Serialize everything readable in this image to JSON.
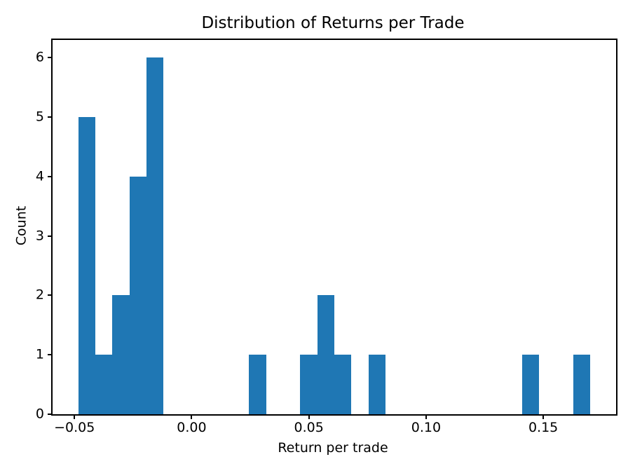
{
  "figure": {
    "background_color": "#ffffff",
    "text_color": "#000000"
  },
  "chart_data": {
    "type": "bar",
    "subtype": "histogram",
    "title": "Distribution of Returns per Trade",
    "xlabel": "Return per trade",
    "ylabel": "Count",
    "bar_color": "#1f77b4",
    "spine_color": "#000000",
    "grid": false,
    "legend_position": "none",
    "xlim": [
      -0.059327,
      0.181057
    ],
    "ylim": [
      0,
      6.3
    ],
    "bins": {
      "start": -0.0484,
      "width": 0.0072843,
      "count": 30
    },
    "bin_counts": [
      5,
      1,
      2,
      4,
      6,
      0,
      0,
      0,
      0,
      0,
      1,
      0,
      0,
      1,
      2,
      1,
      0,
      1,
      0,
      0,
      0,
      0,
      0,
      0,
      0,
      0,
      1,
      0,
      0,
      1
    ],
    "xticks": [
      {
        "value": -0.05,
        "label": "−0.05"
      },
      {
        "value": 0.0,
        "label": "0.00"
      },
      {
        "value": 0.05,
        "label": "0.05"
      },
      {
        "value": 0.1,
        "label": "0.10"
      },
      {
        "value": 0.15,
        "label": "0.15"
      }
    ],
    "yticks": [
      {
        "value": 0,
        "label": "0"
      },
      {
        "value": 1,
        "label": "1"
      },
      {
        "value": 2,
        "label": "2"
      },
      {
        "value": 3,
        "label": "3"
      },
      {
        "value": 4,
        "label": "4"
      },
      {
        "value": 5,
        "label": "5"
      },
      {
        "value": 6,
        "label": "6"
      }
    ]
  }
}
